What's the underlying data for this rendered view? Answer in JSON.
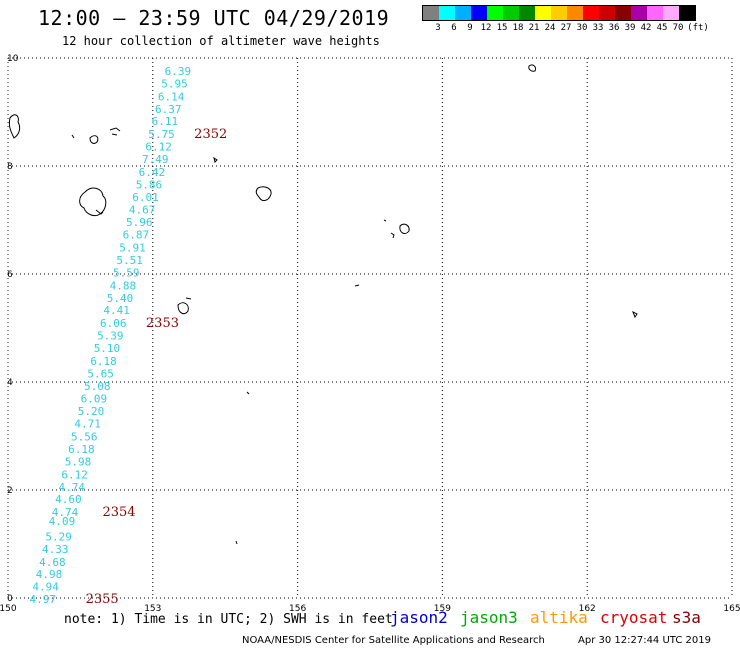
{
  "title": "12:00 – 23:59 UTC 04/29/2019",
  "subtitle": "12 hour collection of altimeter wave heights",
  "legend": {
    "unit": "(ft)",
    "colors": [
      "#808080",
      "#00ffff",
      "#00b0ff",
      "#0000ff",
      "#00ff00",
      "#00cc00",
      "#008800",
      "#ffff00",
      "#ffcc00",
      "#ff8800",
      "#ff0000",
      "#cc0000",
      "#880000",
      "#aa00aa",
      "#ff66ff",
      "#ffaaff",
      "#000000"
    ],
    "labels": [
      "3",
      "6",
      "9",
      "12",
      "15",
      "18",
      "21",
      "24",
      "27",
      "30",
      "33",
      "36",
      "39",
      "42",
      "45",
      "70"
    ]
  },
  "map": {
    "lon_range": [
      150,
      165
    ],
    "lat_range": [
      0,
      10
    ],
    "x_ticks": [
      "150",
      "153",
      "156",
      "159",
      "162",
      "165"
    ],
    "y_ticks": [
      "0",
      "2",
      "4",
      "6",
      "8",
      "10"
    ],
    "grid": "dotted",
    "wave_color": "#33ccdd",
    "time_color": "#880000",
    "swh_readings": [
      {
        "lon": 153.52,
        "lat": 9.76,
        "value": "6.39"
      },
      {
        "lon": 153.45,
        "lat": 9.53,
        "value": "5.95"
      },
      {
        "lon": 153.38,
        "lat": 9.29,
        "value": "6.14"
      },
      {
        "lon": 153.32,
        "lat": 9.06,
        "value": "6.37"
      },
      {
        "lon": 153.25,
        "lat": 8.83,
        "value": "6.11"
      },
      {
        "lon": 153.18,
        "lat": 8.59,
        "value": "5.75"
      },
      {
        "lon": 153.12,
        "lat": 8.36,
        "value": "6.12"
      },
      {
        "lon": 153.05,
        "lat": 8.13,
        "value": "7.49"
      },
      {
        "lon": 152.98,
        "lat": 7.89,
        "value": "6.42"
      },
      {
        "lon": 152.92,
        "lat": 7.66,
        "value": "5.86"
      },
      {
        "lon": 152.85,
        "lat": 7.43,
        "value": "6.01"
      },
      {
        "lon": 152.78,
        "lat": 7.19,
        "value": "4.67"
      },
      {
        "lon": 152.72,
        "lat": 6.96,
        "value": "5.96"
      },
      {
        "lon": 152.65,
        "lat": 6.73,
        "value": "6.87"
      },
      {
        "lon": 152.58,
        "lat": 6.49,
        "value": "5.91"
      },
      {
        "lon": 152.52,
        "lat": 6.26,
        "value": "5.51"
      },
      {
        "lon": 152.45,
        "lat": 6.03,
        "value": "5.59"
      },
      {
        "lon": 152.38,
        "lat": 5.79,
        "value": "4.88"
      },
      {
        "lon": 152.32,
        "lat": 5.56,
        "value": "5.40"
      },
      {
        "lon": 152.25,
        "lat": 5.33,
        "value": "4.41"
      },
      {
        "lon": 152.18,
        "lat": 5.09,
        "value": "6.06"
      },
      {
        "lon": 152.12,
        "lat": 4.86,
        "value": "5.39"
      },
      {
        "lon": 152.05,
        "lat": 4.63,
        "value": "5.10"
      },
      {
        "lon": 151.98,
        "lat": 4.39,
        "value": "6.18"
      },
      {
        "lon": 151.92,
        "lat": 4.16,
        "value": "5.65"
      },
      {
        "lon": 151.85,
        "lat": 3.93,
        "value": "5.08"
      },
      {
        "lon": 151.78,
        "lat": 3.69,
        "value": "6.09"
      },
      {
        "lon": 151.72,
        "lat": 3.46,
        "value": "5.20"
      },
      {
        "lon": 151.65,
        "lat": 3.23,
        "value": "4.71"
      },
      {
        "lon": 151.58,
        "lat": 2.99,
        "value": "5.56"
      },
      {
        "lon": 151.52,
        "lat": 2.76,
        "value": "6.18"
      },
      {
        "lon": 151.45,
        "lat": 2.53,
        "value": "5.98"
      },
      {
        "lon": 151.38,
        "lat": 2.29,
        "value": "6.12"
      },
      {
        "lon": 151.32,
        "lat": 2.06,
        "value": "4.74"
      },
      {
        "lon": 151.25,
        "lat": 1.83,
        "value": "4.60"
      },
      {
        "lon": 151.18,
        "lat": 1.59,
        "value": "4.74"
      },
      {
        "lon": 151.12,
        "lat": 1.43,
        "value": "4.09"
      },
      {
        "lon": 151.05,
        "lat": 1.14,
        "value": "5.29"
      },
      {
        "lon": 150.98,
        "lat": 0.91,
        "value": "4.33"
      },
      {
        "lon": 150.92,
        "lat": 0.67,
        "value": "4.68"
      },
      {
        "lon": 150.85,
        "lat": 0.44,
        "value": "4.98"
      },
      {
        "lon": 150.78,
        "lat": 0.21,
        "value": "4.94"
      },
      {
        "lon": 150.72,
        "lat": -0.02,
        "value": "4.97"
      }
    ],
    "time_labels": [
      {
        "lon": 154.2,
        "lat": 8.59,
        "value": "2352"
      },
      {
        "lon": 153.2,
        "lat": 5.09,
        "value": "2353"
      },
      {
        "lon": 152.3,
        "lat": 1.59,
        "value": "2354"
      },
      {
        "lon": 151.95,
        "lat": -0.02,
        "value": "2355"
      }
    ]
  },
  "note": "note: 1) Time is in UTC; 2) SWH is in feet",
  "satellites": [
    {
      "name": "jason2",
      "color": "#0000cc"
    },
    {
      "name": "jason3",
      "color": "#00aa00"
    },
    {
      "name": "altika",
      "color": "#ff9900"
    },
    {
      "name": "cryosat",
      "color": "#dd0000"
    },
    {
      "name": "s3a",
      "color": "#880000"
    }
  ],
  "credit": "NOAA/NESDIS Center for Satellite Applications and Research",
  "timestamp": "Apr 30 12:27:44 UTC 2019"
}
